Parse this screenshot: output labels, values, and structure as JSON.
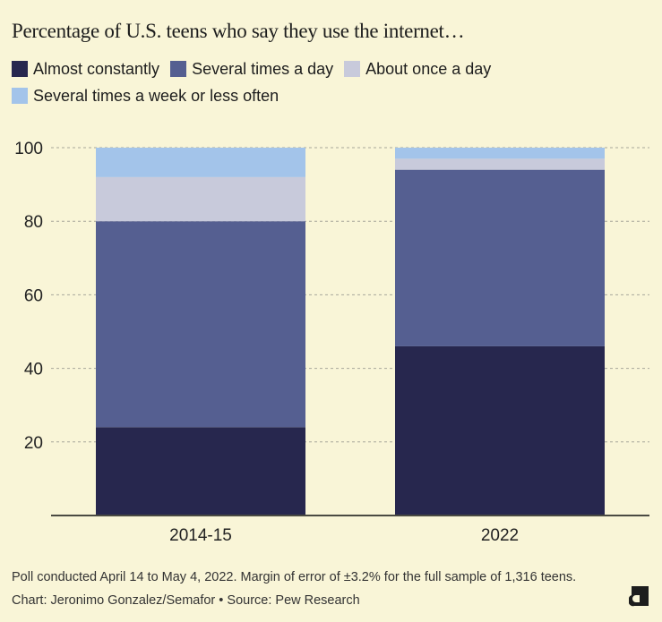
{
  "chart_data": {
    "type": "bar",
    "stacked": true,
    "title": "Percentage of U.S. teens who say they use the internet…",
    "xlabel": "",
    "ylabel": "",
    "ylim": [
      0,
      100
    ],
    "yticks": [
      20,
      40,
      60,
      80,
      100
    ],
    "grid": true,
    "legend_position": "top",
    "categories": [
      "2014-15",
      "2022"
    ],
    "series": [
      {
        "name": "Almost constantly",
        "color": "#27274e",
        "values": [
          24,
          46
        ]
      },
      {
        "name": "Several times a day",
        "color": "#555f91",
        "values": [
          56,
          48
        ]
      },
      {
        "name": "About once a day",
        "color": "#c8cadb",
        "values": [
          12,
          3
        ]
      },
      {
        "name": "Several times a week or less often",
        "color": "#a3c4ea",
        "values": [
          8,
          3
        ]
      }
    ]
  },
  "footer": {
    "note": "Poll conducted April 14 to May 4, 2022. Margin of error of ±3.2% for the full sample of 1,316 teens.",
    "credit": "Chart: Jeronimo Gonzalez/Semafor • Source: Pew Research"
  },
  "logo": {
    "icon": "semafor-logo-icon"
  }
}
